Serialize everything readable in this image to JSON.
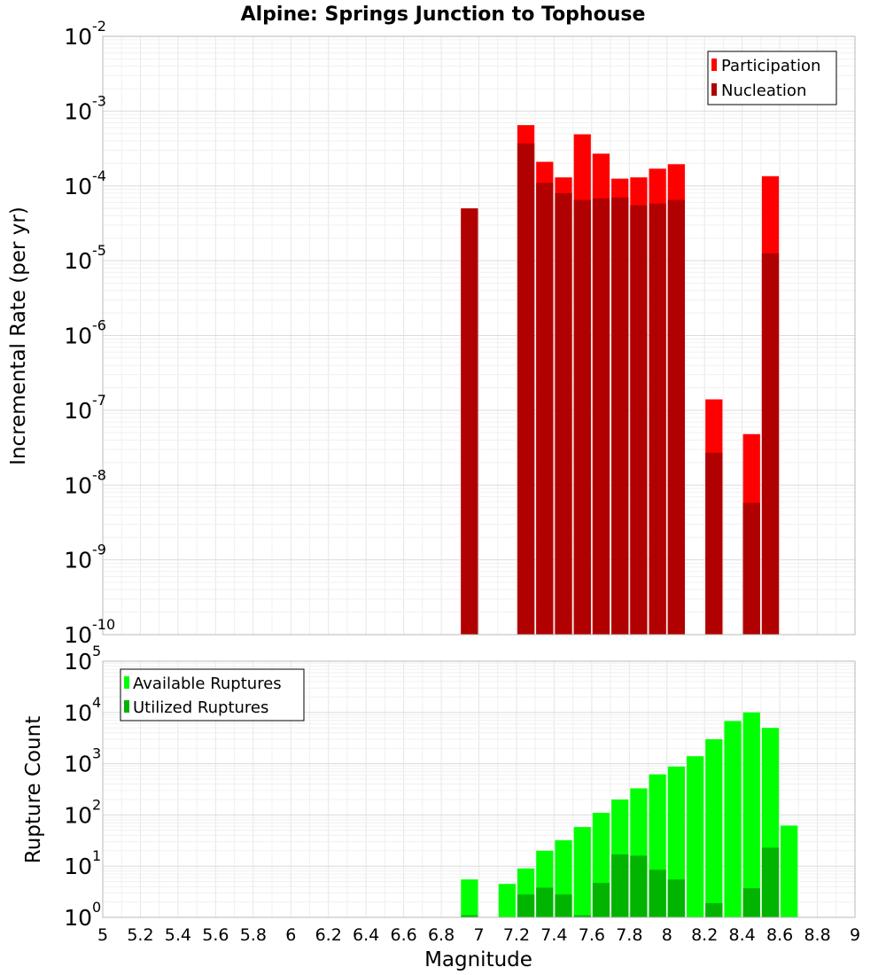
{
  "title": "Alpine: Springs Junction to Tophouse",
  "xlabel": "Magnitude",
  "chart_data": [
    {
      "type": "bar",
      "ylabel": "Incremental Rate (per yr)",
      "yscale": "log",
      "ylim": [
        1e-10,
        0.01
      ],
      "xlim": [
        5,
        9
      ],
      "grid": true,
      "legend_position": "top-right",
      "y_ticks": [
        {
          "base": "10",
          "exp": "-10"
        },
        {
          "base": "10",
          "exp": "-9"
        },
        {
          "base": "10",
          "exp": "-8"
        },
        {
          "base": "10",
          "exp": "-7"
        },
        {
          "base": "10",
          "exp": "-6"
        },
        {
          "base": "10",
          "exp": "-5"
        },
        {
          "base": "10",
          "exp": "-4"
        },
        {
          "base": "10",
          "exp": "-3"
        },
        {
          "base": "10",
          "exp": "-2"
        }
      ],
      "x": [
        6.95,
        7.25,
        7.35,
        7.45,
        7.55,
        7.65,
        7.75,
        7.85,
        7.95,
        8.05,
        8.25,
        8.45,
        8.55
      ],
      "series": [
        {
          "name": "Participation",
          "color": "#ff0000",
          "values": [
            5e-05,
            0.00065,
            0.00021,
            0.00013,
            0.00049,
            0.00027,
            0.000125,
            0.00013,
            0.00017,
            0.000195,
            1.4e-07,
            4.8e-08,
            0.000135
          ]
        },
        {
          "name": "Nucleation",
          "color": "#b00000",
          "values": [
            5e-05,
            0.00037,
            0.00011,
            8e-05,
            6.5e-05,
            6.8e-05,
            7e-05,
            5.5e-05,
            5.8e-05,
            6.5e-05,
            2.7e-08,
            5.8e-09,
            1.25e-05
          ]
        }
      ]
    },
    {
      "type": "bar",
      "ylabel": "Rupture Count",
      "yscale": "log",
      "ylim": [
        1,
        100000.0
      ],
      "xlim": [
        5,
        9
      ],
      "grid": true,
      "legend_position": "top-left",
      "y_ticks": [
        {
          "base": "10",
          "exp": "0"
        },
        {
          "base": "10",
          "exp": "1"
        },
        {
          "base": "10",
          "exp": "2"
        },
        {
          "base": "10",
          "exp": "3"
        },
        {
          "base": "10",
          "exp": "4"
        },
        {
          "base": "10",
          "exp": "5"
        }
      ],
      "x": [
        6.95,
        7.15,
        7.25,
        7.35,
        7.45,
        7.55,
        7.65,
        7.75,
        7.85,
        7.95,
        8.05,
        8.15,
        8.25,
        8.35,
        8.45,
        8.55,
        8.65
      ],
      "series": [
        {
          "name": "Available Ruptures",
          "color": "#00ff00",
          "values": [
            5.5,
            4.5,
            9,
            20,
            32,
            58,
            110,
            200,
            330,
            620,
            880,
            1400,
            3000,
            6800,
            10000,
            5000,
            62
          ]
        },
        {
          "name": "Utilized Ruptures",
          "color": "#00b400",
          "values": [
            1.1,
            null,
            2.8,
            3.8,
            2.8,
            1.1,
            4.7,
            17,
            16,
            8.5,
            5.5,
            null,
            1.9,
            null,
            3.7,
            23,
            null
          ]
        }
      ]
    }
  ],
  "x_ticks": [
    "5",
    "5.2",
    "5.4",
    "5.6",
    "5.8",
    "6",
    "6.2",
    "6.4",
    "6.6",
    "6.8",
    "7",
    "7.2",
    "7.4",
    "7.6",
    "7.8",
    "8",
    "8.2",
    "8.4",
    "8.6",
    "8.8",
    "9"
  ]
}
